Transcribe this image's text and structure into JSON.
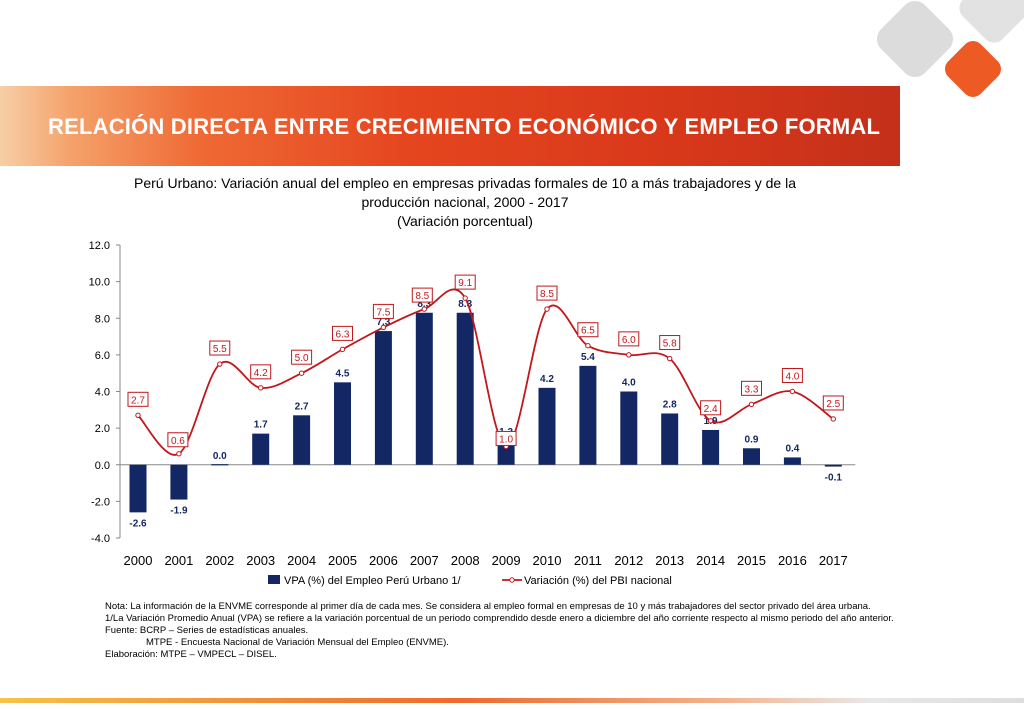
{
  "header": {
    "title": "RELACIÓN DIRECTA ENTRE CRECIMIENTO ECONÓMICO Y EMPLEO FORMAL"
  },
  "brand": {
    "accent": "#e5461f",
    "logo_grey": "#dcdcdc",
    "logo_orange": "#ee5a24"
  },
  "subtitle": {
    "line1": "Perú Urbano: Variación anual del empleo en empresas privadas formales de 10 a más trabajadores y de la",
    "line2": "producción nacional, 2000 - 2017",
    "line3": "(Variación porcentual)"
  },
  "chart_data": {
    "type": "bar",
    "categories": [
      "2000",
      "2001",
      "2002",
      "2003",
      "2004",
      "2005",
      "2006",
      "2007",
      "2008",
      "2009",
      "2010",
      "2011",
      "2012",
      "2013",
      "2014",
      "2015",
      "2016",
      "2017"
    ],
    "series": [
      {
        "name": "VPA (%) del Empleo Perú Urbano 1/",
        "type": "bar",
        "color": "#132764",
        "values": [
          -2.6,
          -1.9,
          0.0,
          1.7,
          2.7,
          4.5,
          7.3,
          8.3,
          8.3,
          1.3,
          4.2,
          5.4,
          4.0,
          2.8,
          1.9,
          0.9,
          0.4,
          -0.1
        ]
      },
      {
        "name": "Variación (%) del PBI nacional",
        "type": "line",
        "color": "#c0181c",
        "values": [
          2.7,
          0.6,
          5.5,
          4.2,
          5.0,
          6.3,
          7.5,
          8.5,
          9.1,
          1.0,
          8.5,
          6.5,
          6.0,
          5.8,
          2.4,
          3.3,
          4.0,
          2.5
        ]
      }
    ],
    "ylim": [
      -4.0,
      12.0
    ],
    "yticks": [
      "12.0",
      "10.0",
      "8.0",
      "6.0",
      "4.0",
      "2.0",
      "0.0",
      "-2.0",
      "-4.0"
    ],
    "bar_labels": [
      "-2.6",
      "-1.9",
      "0.0",
      "1.7",
      "2.7",
      "4.5",
      "7.3",
      "8.3",
      "8.3",
      "1.3",
      "4.2",
      "5.4",
      "4.0",
      "2.8",
      "1.9",
      "0.9",
      "0.4",
      "-0.1"
    ],
    "line_labels": [
      "2.7",
      "0.6",
      "5.5",
      "4.2",
      "5.0",
      "6.3",
      "7.5",
      "8.5",
      "9.1",
      "1.0",
      "8.5",
      "6.5",
      "6.0",
      "5.8",
      "2.4",
      "3.3",
      "4.0",
      "2.5"
    ],
    "grid": false,
    "legend": "bottom"
  },
  "notes": {
    "n1": "Nota: La información  de la ENVME corresponde al primer día de cada mes. Se considera al empleo formal en empresas de 10 y más trabajadores del sector privado del área urbana.",
    "n2": "1/La Variación Promedio Anual (VPA) se refiere a la variación porcentual de un periodo comprendido desde enero a diciembre del año corriente respecto al mismo periodo del año anterior.",
    "n3": "Fuente:   BCRP – Series de estadísticas anuales.",
    "n4": "MTPE - Encuesta Nacional de Variación Mensual del Empleo (ENVME).",
    "n5": "Elaboración: MTPE – VMPECL – DISEL."
  }
}
